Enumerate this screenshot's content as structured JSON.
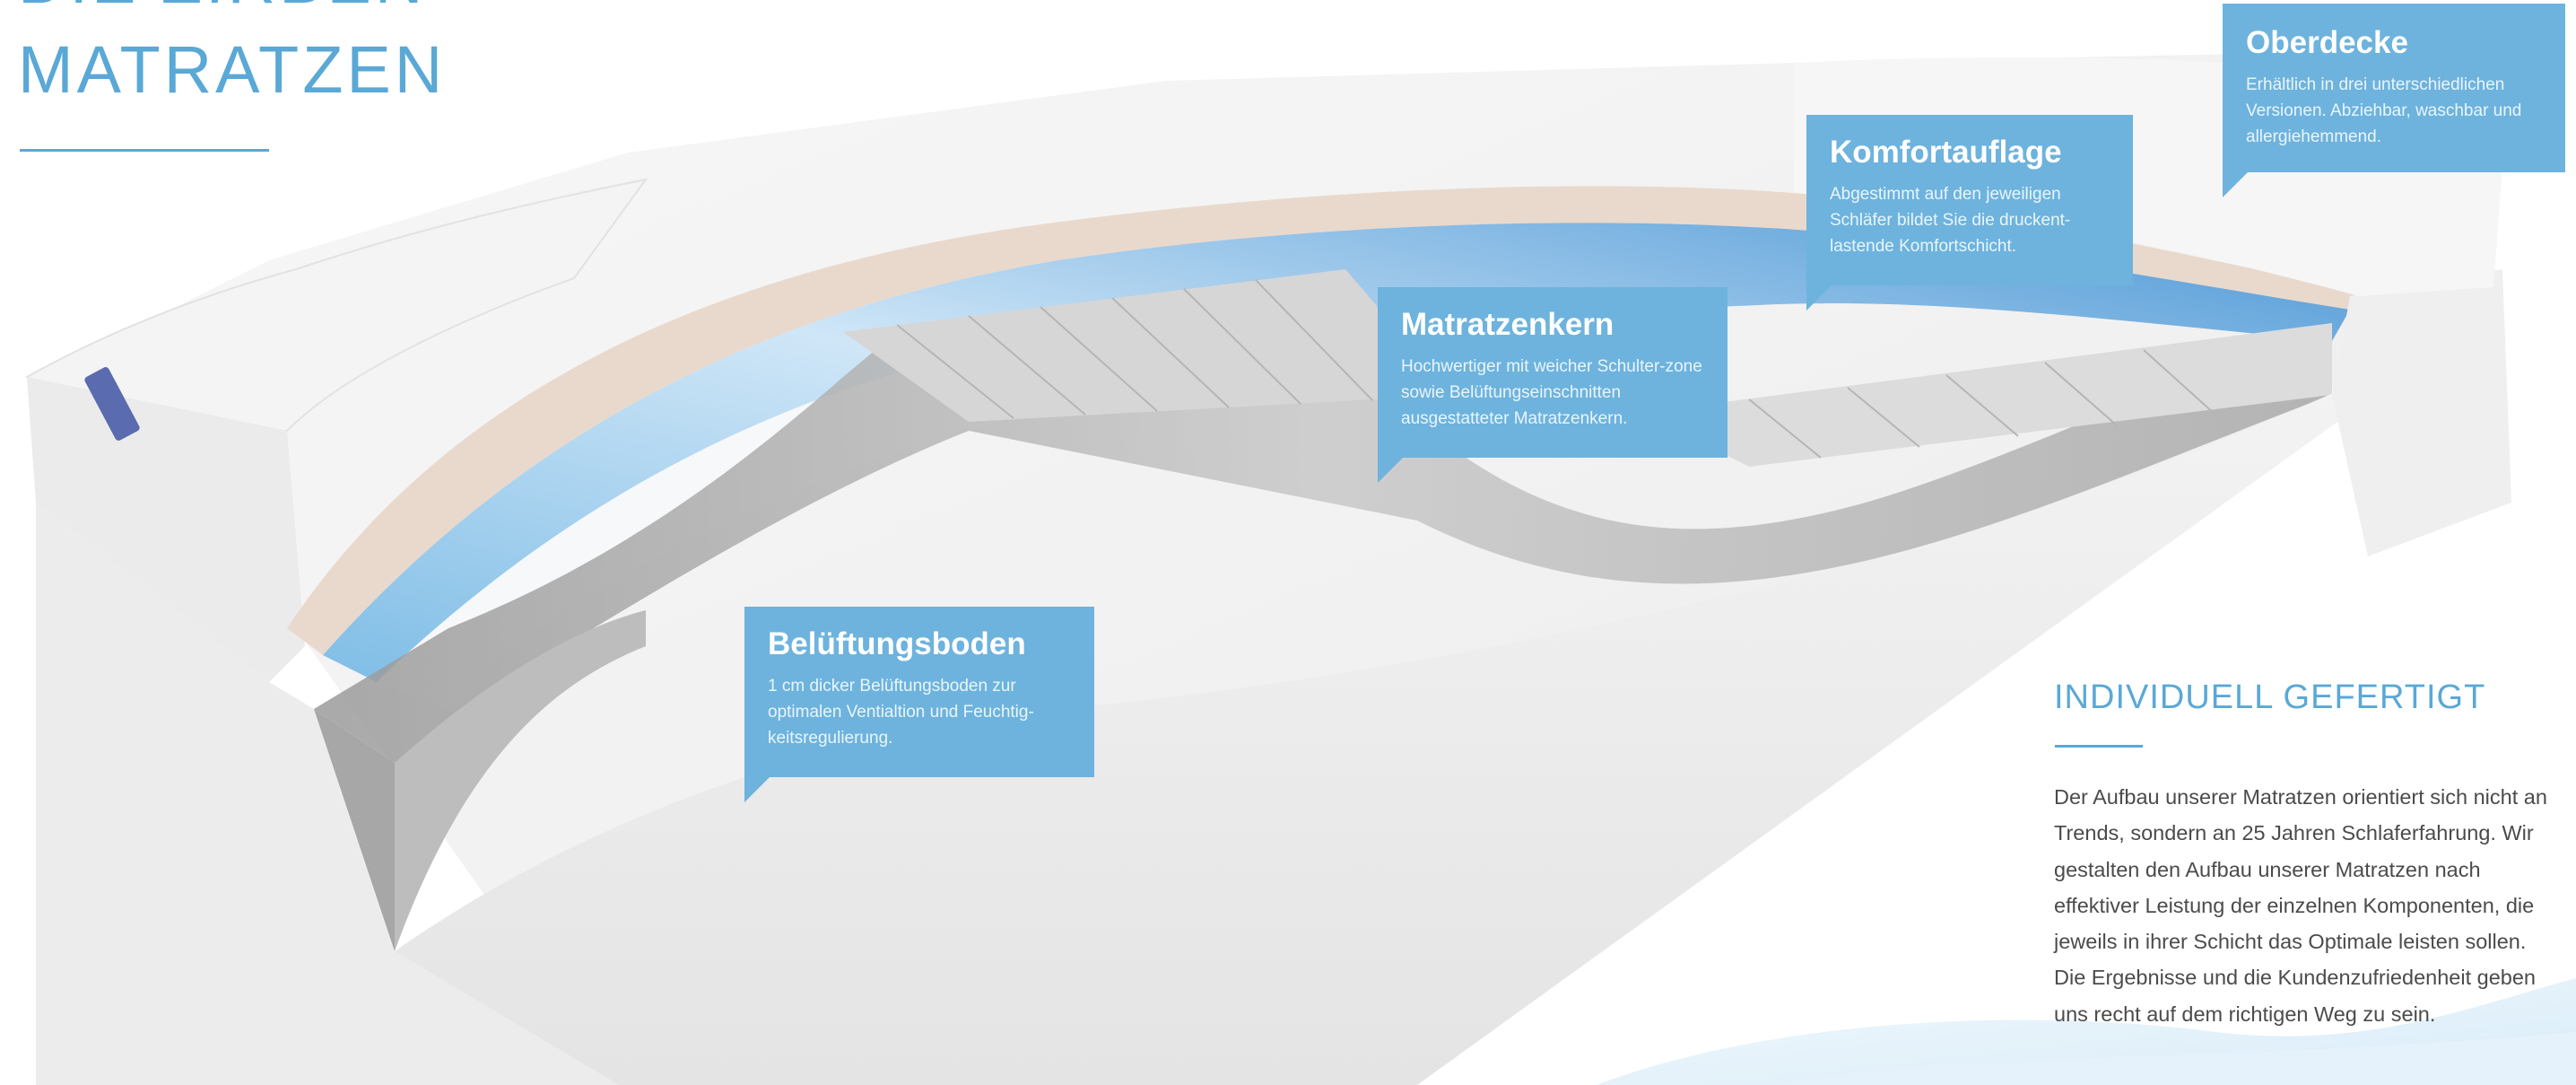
{
  "heading": {
    "line1": "DIE ZIRBEN",
    "line2": "MATRATZEN"
  },
  "callouts": {
    "oberdecke": {
      "title": "Oberdecke",
      "text": "Erhältlich in drei unterschiedlichen Versionen. Abziehbar, waschbar und allergiehemmend."
    },
    "komfortauflage": {
      "title": "Komfortauflage",
      "text": "Abgestimmt auf den jeweiligen Schläfer bildet Sie die druckent-lastende Komfortschicht."
    },
    "matratzenkern": {
      "title": "Matratzenkern",
      "text": "Hochwertiger mit weicher Schulter-zone sowie Belüftungseinschnitten ausgestatteter Matratzenkern."
    },
    "belueftungsboden": {
      "title": "Belüftungsboden",
      "text": "1 cm dicker Belüftungsboden zur optimalen Ventialtion und Feuchtig-keitsregulierung."
    }
  },
  "info": {
    "title": "INDIVIDUELL GEFERTIGT",
    "text": "Der Aufbau unserer Matratzen orientiert sich nicht an Trends, sondern an 25 Jahren Schlaferfahrung. Wir gestalten den Aufbau unserer Matratzen nach effektiver Leistung der einzelnen Komponenten, die jeweils in ihrer Schicht das Optimale leisten sollen. Die Ergebnisse und die Kundenzufriedenheit geben uns recht auf dem richtigen Weg zu sein."
  },
  "colors": {
    "accent": "#5aa8d6",
    "callout": "#6db3dd",
    "text": "#4b4b4b"
  }
}
